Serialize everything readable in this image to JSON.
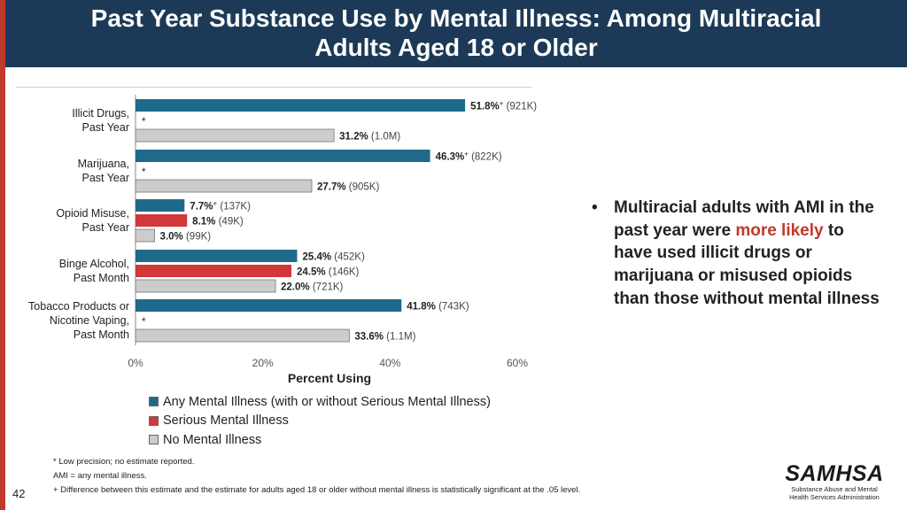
{
  "slide": {
    "title": "Past Year Substance Use by Mental Illness: Among Multiracial\nAdults Aged 18 or Older",
    "page_number": "42",
    "bullet": {
      "symbol": "•",
      "text_before": "Multiracial adults with AMI in the past year were ",
      "highlight": "more likely",
      "text_after": " to have used illicit drugs or marijuana or misused opioids than those without mental illness"
    },
    "notes": [
      "* Low precision; no estimate reported.",
      "AMI = any mental illness.",
      "+ Difference between this estimate and the estimate for adults aged 18 or older without mental illness is statistically significant at the .05 level."
    ],
    "logo": {
      "name": "SAMHSA",
      "subtitle": "Substance Abuse and Mental Health Services Administration"
    },
    "colors": {
      "header": "#1c3a57",
      "accent": "#c0392b"
    }
  },
  "chart_data": {
    "type": "bar",
    "orientation": "horizontal",
    "xlabel": "Percent Using",
    "xlim": [
      0,
      60
    ],
    "ticks": [
      "0%",
      "20%",
      "40%",
      "60%"
    ],
    "categories": [
      "Illicit Drugs,\nPast Year",
      "Marijuana,\nPast Year",
      "Opioid Misuse,\nPast Year",
      "Binge Alcohol,\nPast Month",
      "Tobacco Products or\nNicotine Vaping,\nPast Month"
    ],
    "series": [
      {
        "name": "Any Mental Illness (with or without Serious Mental Illness)",
        "color": "#1f6a8a",
        "values": [
          51.8,
          46.3,
          7.7,
          25.4,
          41.8
        ],
        "value_labels": [
          "51.8%",
          "46.3%",
          "7.7%",
          "25.4%",
          "41.8%"
        ],
        "sig": [
          "+",
          "+",
          "+",
          "",
          ""
        ],
        "counts": [
          "(921K)",
          "(822K)",
          "(137K)",
          "(452K)",
          "(743K)"
        ]
      },
      {
        "name": "Serious Mental Illness",
        "color": "#d2373a",
        "values": [
          null,
          null,
          8.1,
          24.5,
          null
        ],
        "value_labels": [
          "",
          "",
          "8.1%",
          "24.5%",
          ""
        ],
        "sig": [
          "",
          "",
          "",
          "",
          ""
        ],
        "counts": [
          "",
          "",
          "(49K)",
          "(146K)",
          ""
        ],
        "missing_marker": "*"
      },
      {
        "name": "No Mental Illness",
        "color": "#cccccc",
        "values": [
          31.2,
          27.7,
          3.0,
          22.0,
          33.6
        ],
        "value_labels": [
          "31.2%",
          "27.7%",
          "3.0%",
          "22.0%",
          "33.6%"
        ],
        "sig": [
          "",
          "",
          "",
          "",
          ""
        ],
        "counts": [
          "(1.0M)",
          "(905K)",
          "(99K)",
          "(721K)",
          "(1.1M)"
        ]
      }
    ],
    "legend_position": "bottom"
  }
}
